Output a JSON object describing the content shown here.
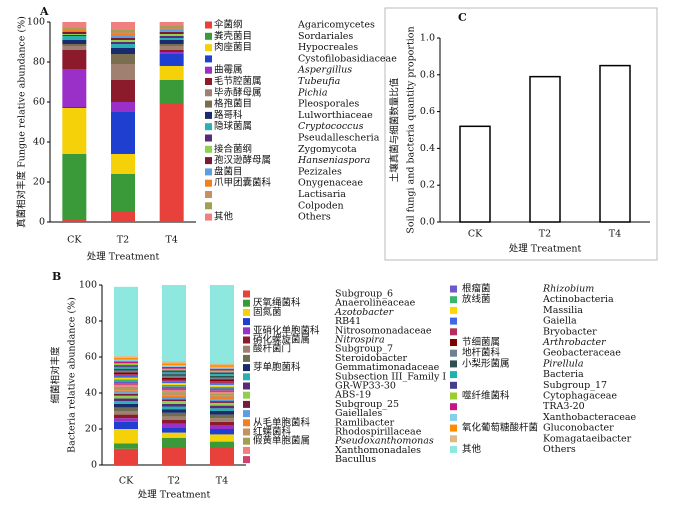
{
  "chart_data": [
    {
      "type": "stacked_bar",
      "panel": "A",
      "ylabel": "真菌相对丰度 Fungue relative abundance (%)",
      "xlabel": "处理 Treatment",
      "categories": [
        "CK",
        "T2",
        "T4"
      ],
      "ylim": [
        0,
        100
      ],
      "yticks": [
        0,
        20,
        40,
        60,
        80,
        100
      ],
      "series": [
        {
          "name_zh": "伞菌纲",
          "name": "Agaricomycetes",
          "color": "#e8413c",
          "values": [
            1,
            5,
            59
          ]
        },
        {
          "name_zh": "粪壳菌目",
          "name": "Sordariales",
          "color": "#3a9a3a",
          "values": [
            33,
            19,
            12
          ]
        },
        {
          "name_zh": "肉座菌目",
          "name": "Hypocreales",
          "color": "#f5d10a",
          "values": [
            23,
            10,
            7
          ]
        },
        {
          "name": "Cystofilobasidiaceae",
          "color": "#1f3fd0",
          "values": [
            0.5,
            21,
            6
          ]
        },
        {
          "name_zh": "曲霉属",
          "name": "Aspergillus",
          "italic": true,
          "color": "#9b30c9",
          "values": [
            19,
            5,
            1
          ]
        },
        {
          "name_zh": "毛节腔菌属",
          "name": "Tubeufia",
          "italic": true,
          "color": "#8b1a2b",
          "values": [
            9.5,
            11,
            1
          ]
        },
        {
          "name_zh": "毕赤酵母属",
          "name": "Pichia",
          "italic": true,
          "color": "#a08070",
          "values": [
            2,
            8,
            2
          ]
        },
        {
          "name_zh": "格孢菌目",
          "name": "Pleosporales",
          "color": "#7a6e50",
          "values": [
            1,
            5,
            1
          ]
        },
        {
          "name_zh": "路哥科",
          "name": "Lulworthiaceae",
          "color": "#1a2a6e",
          "values": [
            2,
            3,
            2
          ]
        },
        {
          "name_zh": "隐球菌属",
          "name": "Cryptococcus",
          "italic": true,
          "color": "#2ab0b0",
          "values": [
            2,
            2,
            1
          ]
        },
        {
          "name": "Pseudallescheria",
          "color": "#5a2a7a",
          "values": [
            0.5,
            1,
            1
          ]
        },
        {
          "name_zh": "接合菌纲",
          "name": "Zygomycota",
          "color": "#8fd14f",
          "values": [
            0.5,
            1,
            1
          ]
        },
        {
          "name_zh": "孢汉逊酵母属",
          "name": "Hanseniaspora",
          "italic": true,
          "color": "#7a1a3a",
          "values": [
            1,
            1,
            1
          ]
        },
        {
          "name_zh": "盘菌目",
          "name": "Pezizales",
          "color": "#5aa0e0",
          "values": [
            0.5,
            1,
            1
          ]
        },
        {
          "name_zh": "爪甲团囊菌科",
          "name": "Onygenaceae",
          "color": "#f08020",
          "values": [
            0.5,
            1,
            0.5
          ]
        },
        {
          "name": "Lactisaria",
          "color": "#c89060",
          "values": [
            0.5,
            1,
            0.5
          ]
        },
        {
          "name": "Colpoden",
          "color": "#a0a050",
          "values": [
            0.5,
            1,
            1
          ]
        },
        {
          "name_zh": "其他",
          "name": "Others",
          "color": "#f08080",
          "values": [
            3,
            4,
            2
          ]
        }
      ]
    },
    {
      "type": "stacked_bar",
      "panel": "B",
      "ylabel": [
        "细菌相对丰度",
        "Bacteria relative abundance (%)"
      ],
      "xlabel": "处理 Treatment",
      "categories": [
        "CK",
        "T2",
        "T4"
      ],
      "ylim": [
        0,
        100
      ],
      "yticks": [
        0,
        20,
        40,
        60,
        80,
        100
      ],
      "series": [
        {
          "name": "Subgroup_6",
          "color": "#e8413c",
          "values": [
            9,
            10,
            10
          ]
        },
        {
          "name_zh": "厌氧绳菌科",
          "name": "Anaerolineaceae",
          "color": "#3a9a3a",
          "values": [
            3,
            5,
            3
          ]
        },
        {
          "name_zh": "固氮菌",
          "name": "Azotobacter",
          "italic": true,
          "color": "#f5d10a",
          "values": [
            8,
            3,
            4
          ]
        },
        {
          "name": "RB41",
          "color": "#1f3fd0",
          "values": [
            4,
            3,
            3
          ]
        },
        {
          "name_zh": "亚硝化单胞菌科",
          "name": "Nitrosomonadaceae",
          "color": "#9b30c9",
          "values": [
            2,
            2,
            2
          ]
        },
        {
          "name_zh": "硝化螺旋菌属",
          "name": "Nitrospira",
          "italic": true,
          "color": "#8b1a2b",
          "values": [
            2,
            2,
            2
          ]
        },
        {
          "name_zh": "酸杆菌门",
          "name": "Subgroup_7",
          "color": "#a08070",
          "values": [
            2,
            2,
            2
          ]
        },
        {
          "name": "Steroidobacter",
          "color": "#6e6e50",
          "values": [
            2,
            2,
            2
          ]
        },
        {
          "name_zh": "芽单胞菌科",
          "name": "Gemmatimonadaceae",
          "color": "#1a2a6e",
          "values": [
            2,
            2,
            2
          ]
        },
        {
          "name": "Subsection III_Family I",
          "color": "#2ab0b0",
          "values": [
            1.5,
            1.5,
            1.5
          ]
        },
        {
          "name": "GR-WP33-30",
          "color": "#5a2a7a",
          "values": [
            1.5,
            1.5,
            1.5
          ]
        },
        {
          "name": "ABS-19",
          "color": "#8fd14f",
          "values": [
            1.5,
            1.5,
            1.5
          ]
        },
        {
          "name": "Subgroup_25",
          "color": "#7a1a3a",
          "values": [
            1,
            1,
            1
          ]
        },
        {
          "name": "Gaiellales",
          "color": "#5aa0e0",
          "values": [
            1,
            1,
            1
          ]
        },
        {
          "name_zh": "从毛单胞菌科",
          "name": "Ramlibacter",
          "color": "#f08020",
          "values": [
            1,
            1,
            1
          ]
        },
        {
          "name_zh": "红螺菌科",
          "name": "Rhodospirillaceae",
          "color": "#c89060",
          "values": [
            1,
            1,
            1
          ]
        },
        {
          "name_zh": "假黄单胞菌属",
          "name": "Pseudoxanthomonas",
          "italic": true,
          "color": "#a0a050",
          "values": [
            1,
            1,
            1
          ]
        },
        {
          "name": "Xanthomonadales",
          "color": "#f08080",
          "values": [
            1,
            1,
            1
          ]
        },
        {
          "name": "Bacullus",
          "color": "#d04070",
          "values": [
            1,
            1,
            1
          ]
        },
        {
          "name_zh": "根瘤菌",
          "name": "Rhizobium",
          "italic": true,
          "color": "#6a5acd",
          "values": [
            1,
            1,
            1
          ]
        },
        {
          "name_zh": "放线菌",
          "name": "Actinobacteria",
          "color": "#3cb371",
          "values": [
            1,
            1,
            1
          ]
        },
        {
          "name": "Massilia",
          "color": "#ffd700",
          "values": [
            1,
            1,
            1
          ]
        },
        {
          "name": "Gaiella",
          "color": "#4169e1",
          "values": [
            1,
            1,
            1
          ]
        },
        {
          "name": "Bryobacter",
          "color": "#b03060",
          "values": [
            1,
            1,
            1
          ]
        },
        {
          "name_zh": "节细菌属",
          "name": "Arthrobacter",
          "italic": true,
          "color": "#800000",
          "values": [
            1,
            1,
            1
          ]
        },
        {
          "name_zh": "地杆菌科",
          "name": "Geobacteraceae",
          "color": "#708090",
          "values": [
            1,
            1,
            1
          ]
        },
        {
          "name_zh": "小梨形菌属",
          "name": "Pirellula",
          "italic": true,
          "color": "#2f4f4f",
          "values": [
            1,
            1,
            1
          ]
        },
        {
          "name": "Bacteria",
          "color": "#20b2aa",
          "values": [
            1,
            1,
            1
          ]
        },
        {
          "name": "Subgroup_17",
          "color": "#483d8b",
          "values": [
            1,
            1,
            1
          ]
        },
        {
          "name_zh": "噬纤维菌科",
          "name": "Cytophagaceae",
          "color": "#9acd32",
          "values": [
            1,
            1,
            1
          ]
        },
        {
          "name": "TRA3-20",
          "color": "#c71585",
          "values": [
            1,
            1,
            1
          ]
        },
        {
          "name": "Xanthobacteraceae",
          "color": "#87ceeb",
          "values": [
            1,
            1,
            1
          ]
        },
        {
          "name_zh": "氧化葡萄糖酸杆菌",
          "name": "Gluconobacter",
          "color": "#ff8c00",
          "values": [
            1,
            1,
            1
          ]
        },
        {
          "name": "Komagataeibacter",
          "color": "#deb887",
          "values": [
            1,
            1,
            1
          ]
        },
        {
          "name_zh": "其他",
          "name": "Others",
          "color": "#8ee8e0",
          "values": [
            38.5,
            42.5,
            43.5
          ]
        }
      ]
    },
    {
      "type": "bar",
      "panel": "C",
      "ylabel": [
        "土壤真菌与细菌数量比值",
        "Soil fungi and bacteria quantity proportion"
      ],
      "xlabel": "处理 Treatment",
      "categories": [
        "CK",
        "T2",
        "T4"
      ],
      "values": [
        0.52,
        0.79,
        0.85
      ],
      "color": "#ffffff",
      "ylim": [
        0,
        1
      ],
      "yticks": [
        {
          "value": 0,
          "label": "0.0"
        },
        0.2,
        0.4,
        0.6,
        0.8,
        {
          "value": 1,
          "label": "1.0"
        }
      ]
    }
  ]
}
